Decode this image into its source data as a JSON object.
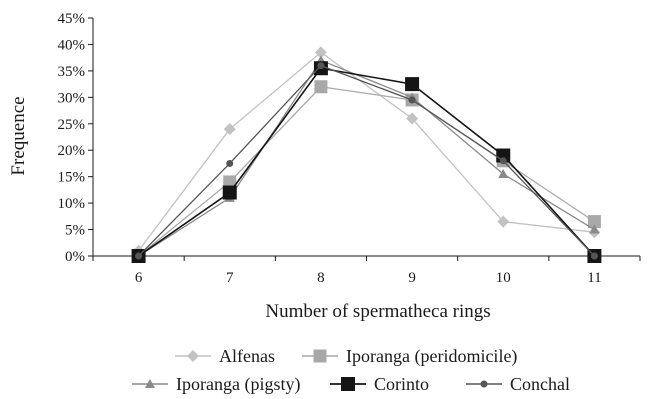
{
  "chart_data": {
    "type": "line",
    "title": "",
    "xlabel": "Number of spermatheca rings",
    "ylabel": "Frequence",
    "categories": [
      "6",
      "7",
      "8",
      "9",
      "10",
      "11"
    ],
    "y_ticks": [
      "0%",
      "5%",
      "10%",
      "15%",
      "20%",
      "25%",
      "30%",
      "35%",
      "40%",
      "45%"
    ],
    "ylim": [
      0,
      45
    ],
    "grid": false,
    "legend_position": "bottom",
    "series": [
      {
        "name": "Alfenas",
        "values": [
          1,
          24,
          38.5,
          26,
          6.5,
          4.5
        ],
        "color": "#c2c2c2",
        "marker": "diamond"
      },
      {
        "name": "Iporanga (peridomicile)",
        "values": [
          0,
          14,
          32,
          29.5,
          18,
          6.5
        ],
        "color": "#a8a8a8",
        "marker": "square"
      },
      {
        "name": "Iporanga (pigsty)",
        "values": [
          0,
          11,
          37,
          30,
          15.5,
          5
        ],
        "color": "#8a8a8a",
        "marker": "triangle"
      },
      {
        "name": "Corinto",
        "values": [
          0,
          12,
          35.5,
          32.5,
          19,
          0
        ],
        "color": "#151515",
        "marker": "square-big"
      },
      {
        "name": "Conchal",
        "values": [
          0,
          17.5,
          36,
          29.5,
          18,
          0
        ],
        "color": "#555555",
        "marker": "circle"
      }
    ]
  }
}
